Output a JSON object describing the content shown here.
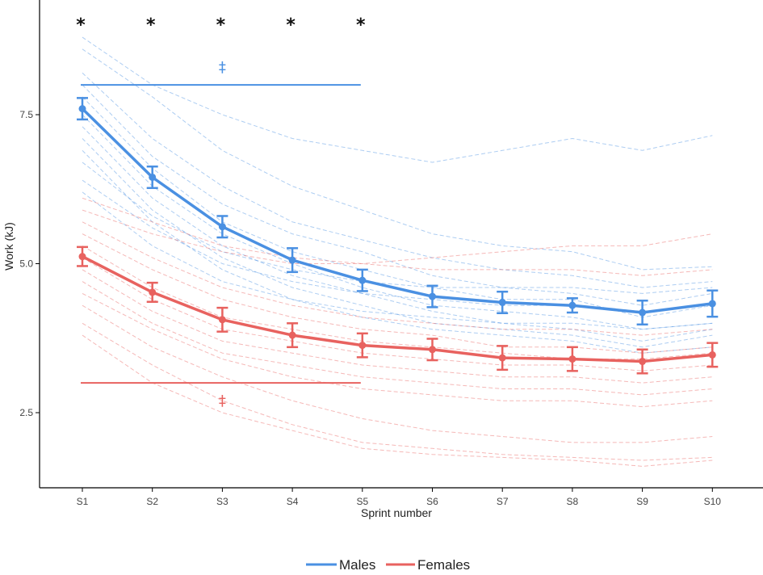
{
  "chart_data": {
    "type": "line",
    "title": "",
    "xlabel": "Sprint number",
    "ylabel": "Work (kJ)",
    "categories": [
      "S1",
      "S2",
      "S3",
      "S4",
      "S5",
      "S6",
      "S7",
      "S8",
      "S9",
      "S10"
    ],
    "ylim": [
      1.5,
      9.2
    ],
    "yticks": [
      2.5,
      5.0,
      7.5
    ],
    "ytick_labels": [
      "2.5",
      "5.0",
      "7.5"
    ],
    "grid": false,
    "legend_position": "bottom",
    "series": [
      {
        "name": "Males",
        "color": "#4a90e2",
        "values": [
          7.6,
          6.45,
          5.62,
          5.06,
          4.72,
          4.45,
          4.35,
          4.3,
          4.18,
          4.33
        ],
        "errors": [
          0.18,
          0.18,
          0.18,
          0.2,
          0.18,
          0.18,
          0.18,
          0.12,
          0.2,
          0.22
        ],
        "individuals": [
          [
            8.8,
            8.0,
            7.5,
            7.1,
            6.9,
            6.7,
            6.9,
            7.1,
            6.9,
            7.15
          ],
          [
            8.6,
            7.8,
            6.9,
            6.3,
            5.9,
            5.5,
            5.3,
            5.2,
            4.9,
            4.95
          ],
          [
            8.2,
            7.1,
            6.3,
            5.7,
            5.4,
            5.1,
            4.9,
            4.8,
            4.6,
            4.7
          ],
          [
            8.0,
            6.8,
            6.0,
            5.5,
            5.2,
            4.8,
            4.6,
            4.5,
            4.3,
            4.5
          ],
          [
            7.8,
            6.6,
            5.7,
            5.2,
            4.9,
            4.6,
            4.4,
            4.4,
            4.1,
            4.3
          ],
          [
            7.5,
            6.3,
            5.5,
            5.0,
            4.6,
            4.3,
            4.2,
            4.1,
            3.9,
            4.0
          ],
          [
            7.3,
            6.1,
            5.3,
            4.8,
            4.5,
            4.2,
            4.0,
            3.9,
            3.7,
            3.9
          ],
          [
            7.1,
            5.9,
            5.1,
            4.6,
            4.3,
            4.0,
            3.9,
            3.8,
            3.6,
            3.8
          ],
          [
            6.9,
            5.7,
            4.9,
            4.4,
            4.1,
            3.9,
            3.8,
            3.7,
            3.5,
            3.6
          ],
          [
            6.7,
            5.8,
            5.2,
            4.9,
            4.7,
            4.6,
            4.6,
            4.6,
            4.5,
            4.6
          ],
          [
            6.4,
            5.6,
            5.0,
            4.7,
            4.5,
            4.4,
            4.3,
            4.3,
            4.2,
            4.3
          ],
          [
            6.2,
            5.3,
            4.7,
            4.4,
            4.2,
            4.1,
            4.0,
            4.0,
            3.9,
            4.0
          ]
        ]
      },
      {
        "name": "Females",
        "color": "#e8625f",
        "values": [
          5.12,
          4.52,
          4.06,
          3.8,
          3.63,
          3.56,
          3.42,
          3.4,
          3.36,
          3.47
        ],
        "errors": [
          0.16,
          0.16,
          0.2,
          0.2,
          0.2,
          0.18,
          0.2,
          0.2,
          0.2,
          0.2
        ],
        "individuals": [
          [
            6.1,
            5.7,
            5.3,
            5.1,
            5.0,
            4.9,
            4.9,
            4.9,
            4.8,
            4.9
          ],
          [
            5.9,
            5.5,
            5.2,
            5.0,
            5.0,
            5.1,
            5.2,
            5.3,
            5.3,
            5.5
          ],
          [
            5.7,
            5.1,
            4.6,
            4.3,
            4.1,
            4.0,
            3.9,
            3.9,
            3.8,
            3.9
          ],
          [
            5.5,
            4.9,
            4.4,
            4.1,
            3.9,
            3.8,
            3.6,
            3.6,
            3.5,
            3.6
          ],
          [
            5.3,
            4.6,
            4.1,
            3.9,
            3.7,
            3.6,
            3.5,
            3.4,
            3.4,
            3.5
          ],
          [
            5.1,
            4.4,
            3.9,
            3.7,
            3.5,
            3.4,
            3.3,
            3.3,
            3.2,
            3.3
          ],
          [
            4.9,
            4.2,
            3.7,
            3.5,
            3.3,
            3.2,
            3.1,
            3.1,
            3.0,
            3.1
          ],
          [
            4.7,
            4.0,
            3.5,
            3.3,
            3.1,
            3.0,
            2.9,
            2.9,
            2.8,
            2.9
          ],
          [
            4.5,
            3.9,
            3.4,
            3.1,
            2.9,
            2.8,
            2.7,
            2.7,
            2.6,
            2.7
          ],
          [
            4.3,
            3.6,
            3.1,
            2.7,
            2.4,
            2.2,
            2.1,
            2.0,
            2.0,
            2.1
          ],
          [
            4.0,
            3.3,
            2.7,
            2.3,
            2.0,
            1.9,
            1.8,
            1.75,
            1.7,
            1.75
          ],
          [
            3.8,
            3.0,
            2.5,
            2.2,
            1.9,
            1.8,
            1.75,
            1.7,
            1.6,
            1.7
          ]
        ]
      }
    ],
    "annotations": {
      "significance_marker": "*",
      "significance_categories": [
        "S1",
        "S2",
        "S3",
        "S4",
        "S5"
      ],
      "bracket_marker": "‡",
      "male_bracket": {
        "y": 8.0,
        "from": "S1",
        "to": "S5",
        "marker_at": "S3",
        "marker_y": 8.3
      },
      "female_bracket": {
        "y": 3.0,
        "from": "S1",
        "to": "S5",
        "marker_at": "S3",
        "marker_y": 2.7
      }
    }
  }
}
